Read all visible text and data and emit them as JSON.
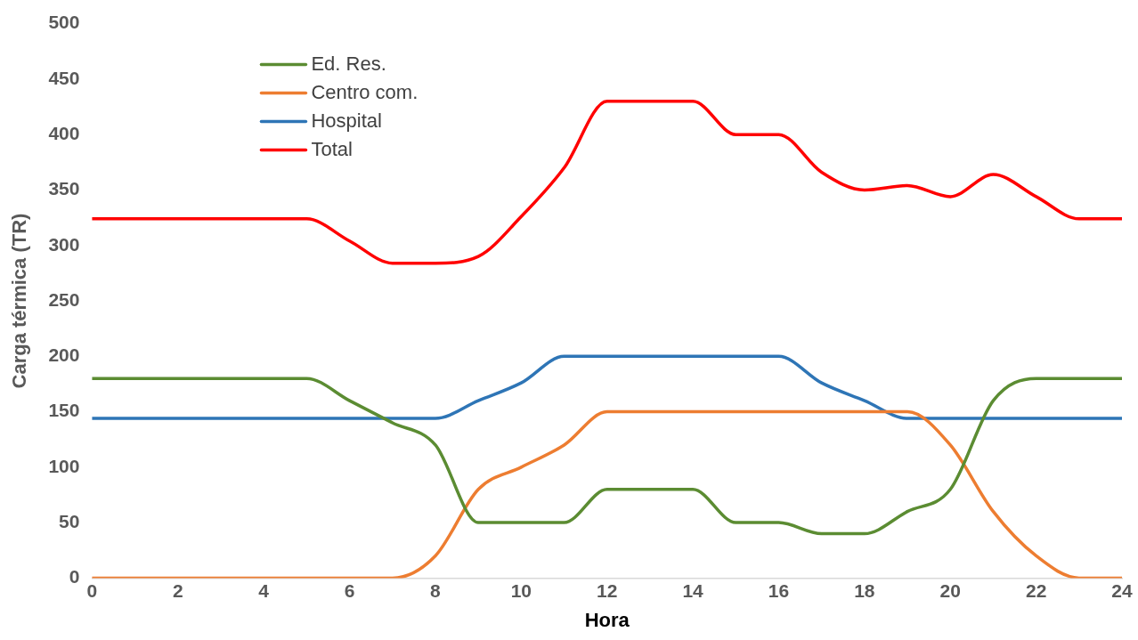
{
  "chart_data": {
    "type": "line",
    "xlabel": "Hora",
    "ylabel": "Carga térmica (TR)",
    "x": [
      0,
      1,
      2,
      3,
      4,
      5,
      6,
      7,
      8,
      9,
      10,
      11,
      12,
      13,
      14,
      15,
      16,
      17,
      18,
      19,
      20,
      21,
      22,
      23,
      24
    ],
    "series": [
      {
        "name": "Ed. Res.",
        "color": "#5b8c32",
        "values": [
          180,
          180,
          180,
          180,
          180,
          180,
          160,
          140,
          120,
          50,
          50,
          50,
          80,
          80,
          80,
          50,
          50,
          40,
          40,
          60,
          80,
          160,
          180,
          180,
          180
        ]
      },
      {
        "name": "Centro com.",
        "color": "#ed7d31",
        "values": [
          0,
          0,
          0,
          0,
          0,
          0,
          0,
          0,
          20,
          80,
          100,
          120,
          150,
          150,
          150,
          150,
          150,
          150,
          150,
          150,
          120,
          60,
          20,
          0,
          0
        ]
      },
      {
        "name": "Hospital",
        "color": "#2e75b6",
        "values": [
          144,
          144,
          144,
          144,
          144,
          144,
          144,
          144,
          144,
          160,
          176,
          200,
          200,
          200,
          200,
          200,
          200,
          176,
          160,
          144,
          144,
          144,
          144,
          144,
          144
        ]
      },
      {
        "name": "Total",
        "color": "#ff0000",
        "values": [
          324,
          324,
          324,
          324,
          324,
          324,
          304,
          284,
          284,
          290,
          326,
          370,
          430,
          430,
          430,
          400,
          400,
          366,
          350,
          354,
          344,
          364,
          344,
          324,
          324
        ]
      }
    ],
    "xlim": [
      0,
      24
    ],
    "xticks": [
      0,
      2,
      4,
      6,
      8,
      10,
      12,
      14,
      16,
      18,
      20,
      22,
      24
    ],
    "ylim": [
      0,
      500
    ],
    "yticks": [
      0,
      50,
      100,
      150,
      200,
      250,
      300,
      350,
      400,
      450,
      500
    ],
    "grid": false,
    "legend": "top left",
    "marker": "none",
    "line_style": "solid"
  }
}
